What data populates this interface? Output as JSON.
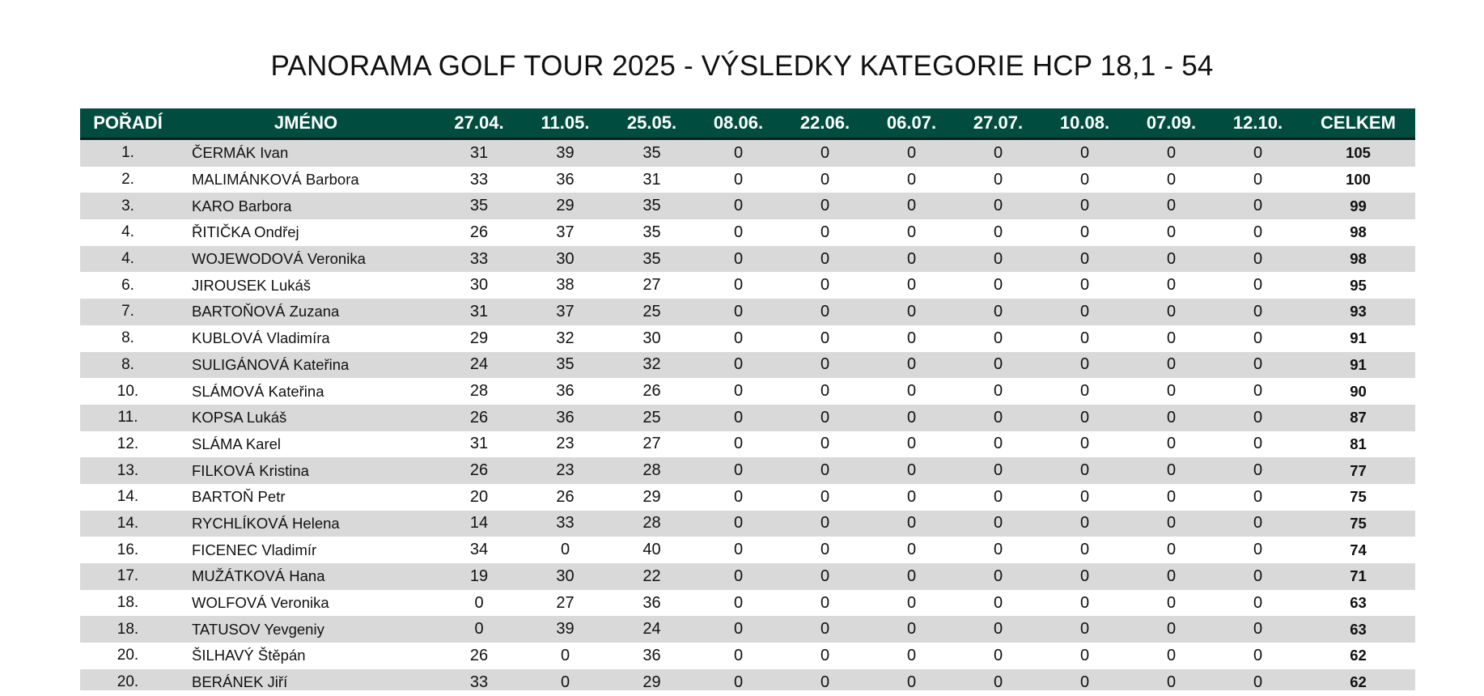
{
  "title": "PANORAMA GOLF TOUR 2025 - VÝSLEDKY KATEGORIE HCP 18,1 - 54",
  "columns": [
    "POŘADÍ",
    "JMÉNO",
    "27.04.",
    "11.05.",
    "25.05.",
    "08.06.",
    "22.06.",
    "06.07.",
    "27.07.",
    "10.08.",
    "07.09.",
    "12.10.",
    "CELKEM"
  ],
  "rows": [
    {
      "rank": "1.",
      "name": "ČERMÁK Ivan",
      "scores": [
        "31",
        "39",
        "35",
        "0",
        "0",
        "0",
        "0",
        "0",
        "0",
        "0"
      ],
      "total": "105"
    },
    {
      "rank": "2.",
      "name": "MALIMÁNKOVÁ Barbora",
      "scores": [
        "33",
        "36",
        "31",
        "0",
        "0",
        "0",
        "0",
        "0",
        "0",
        "0"
      ],
      "total": "100"
    },
    {
      "rank": "3.",
      "name": "KARO Barbora",
      "scores": [
        "35",
        "29",
        "35",
        "0",
        "0",
        "0",
        "0",
        "0",
        "0",
        "0"
      ],
      "total": "99"
    },
    {
      "rank": "4.",
      "name": "ŘITIČKA Ondřej",
      "scores": [
        "26",
        "37",
        "35",
        "0",
        "0",
        "0",
        "0",
        "0",
        "0",
        "0"
      ],
      "total": "98"
    },
    {
      "rank": "4.",
      "name": "WOJEWODOVÁ Veronika",
      "scores": [
        "33",
        "30",
        "35",
        "0",
        "0",
        "0",
        "0",
        "0",
        "0",
        "0"
      ],
      "total": "98"
    },
    {
      "rank": "6.",
      "name": "JIROUSEK Lukáš",
      "scores": [
        "30",
        "38",
        "27",
        "0",
        "0",
        "0",
        "0",
        "0",
        "0",
        "0"
      ],
      "total": "95"
    },
    {
      "rank": "7.",
      "name": "BARTOŇOVÁ Zuzana",
      "scores": [
        "31",
        "37",
        "25",
        "0",
        "0",
        "0",
        "0",
        "0",
        "0",
        "0"
      ],
      "total": "93"
    },
    {
      "rank": "8.",
      "name": "KUBLOVÁ Vladimíra",
      "scores": [
        "29",
        "32",
        "30",
        "0",
        "0",
        "0",
        "0",
        "0",
        "0",
        "0"
      ],
      "total": "91"
    },
    {
      "rank": "8.",
      "name": "SULIGÁNOVÁ Kateřina",
      "scores": [
        "24",
        "35",
        "32",
        "0",
        "0",
        "0",
        "0",
        "0",
        "0",
        "0"
      ],
      "total": "91"
    },
    {
      "rank": "10.",
      "name": "SLÁMOVÁ Kateřina",
      "scores": [
        "28",
        "36",
        "26",
        "0",
        "0",
        "0",
        "0",
        "0",
        "0",
        "0"
      ],
      "total": "90"
    },
    {
      "rank": "11.",
      "name": "KOPSA Lukáš",
      "scores": [
        "26",
        "36",
        "25",
        "0",
        "0",
        "0",
        "0",
        "0",
        "0",
        "0"
      ],
      "total": "87"
    },
    {
      "rank": "12.",
      "name": "SLÁMA Karel",
      "scores": [
        "31",
        "23",
        "27",
        "0",
        "0",
        "0",
        "0",
        "0",
        "0",
        "0"
      ],
      "total": "81"
    },
    {
      "rank": "13.",
      "name": "FILKOVÁ Kristina",
      "scores": [
        "26",
        "23",
        "28",
        "0",
        "0",
        "0",
        "0",
        "0",
        "0",
        "0"
      ],
      "total": "77"
    },
    {
      "rank": "14.",
      "name": "BARTOŇ Petr",
      "scores": [
        "20",
        "26",
        "29",
        "0",
        "0",
        "0",
        "0",
        "0",
        "0",
        "0"
      ],
      "total": "75"
    },
    {
      "rank": "14.",
      "name": "RYCHLÍKOVÁ Helena",
      "scores": [
        "14",
        "33",
        "28",
        "0",
        "0",
        "0",
        "0",
        "0",
        "0",
        "0"
      ],
      "total": "75"
    },
    {
      "rank": "16.",
      "name": "FICENEC Vladimír",
      "scores": [
        "34",
        "0",
        "40",
        "0",
        "0",
        "0",
        "0",
        "0",
        "0",
        "0"
      ],
      "total": "74"
    },
    {
      "rank": "17.",
      "name": "MUŽÁTKOVÁ Hana",
      "scores": [
        "19",
        "30",
        "22",
        "0",
        "0",
        "0",
        "0",
        "0",
        "0",
        "0"
      ],
      "total": "71"
    },
    {
      "rank": "18.",
      "name": "WOLFOVÁ Veronika",
      "scores": [
        "0",
        "27",
        "36",
        "0",
        "0",
        "0",
        "0",
        "0",
        "0",
        "0"
      ],
      "total": "63"
    },
    {
      "rank": "18.",
      "name": "TATUSOV Yevgeniy",
      "scores": [
        "0",
        "39",
        "24",
        "0",
        "0",
        "0",
        "0",
        "0",
        "0",
        "0"
      ],
      "total": "63"
    },
    {
      "rank": "20.",
      "name": "ŠILHAVÝ Štěpán",
      "scores": [
        "26",
        "0",
        "36",
        "0",
        "0",
        "0",
        "0",
        "0",
        "0",
        "0"
      ],
      "total": "62"
    },
    {
      "rank": "20.",
      "name": "BERÁNEK Jiří",
      "scores": [
        "33",
        "0",
        "29",
        "0",
        "0",
        "0",
        "0",
        "0",
        "0",
        "0"
      ],
      "total": "62"
    }
  ],
  "colors": {
    "header_bg": "#004d40",
    "header_text": "#ffffff",
    "row_alt_bg": "#d9d9d9"
  }
}
